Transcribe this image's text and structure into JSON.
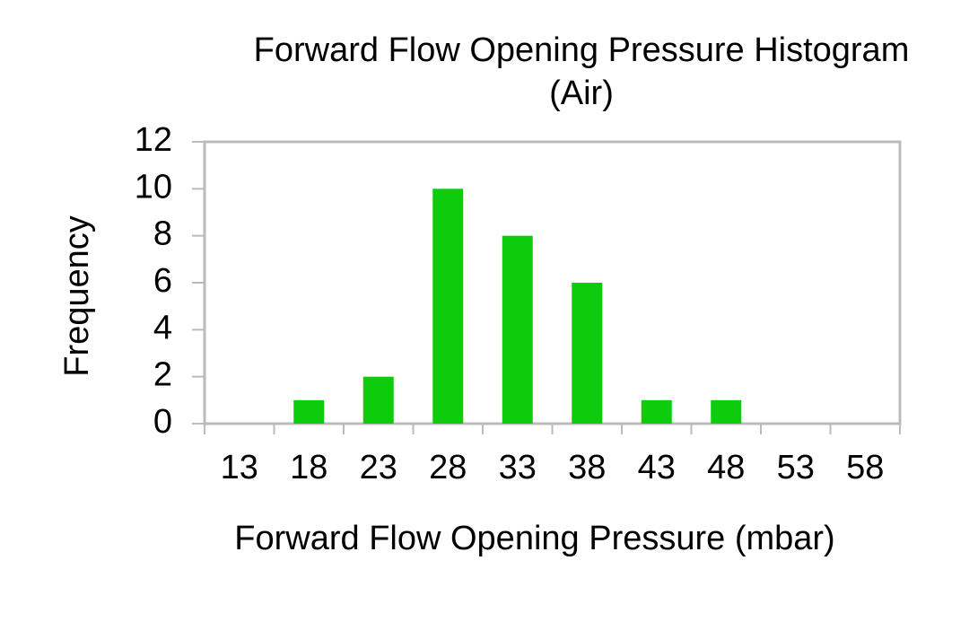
{
  "chart_data": {
    "type": "bar",
    "title": [
      "Forward Flow Opening Pressure Histogram",
      "(Air)"
    ],
    "x_label": "Forward Flow Opening Pressure (mbar)",
    "y_label": "Frequency",
    "categories": [
      "13",
      "18",
      "23",
      "28",
      "33",
      "38",
      "43",
      "48",
      "53",
      "58"
    ],
    "values": [
      0,
      1,
      2,
      10,
      8,
      6,
      1,
      1,
      0,
      0
    ],
    "color": "#0ccc0c",
    "ylim": [
      0,
      12
    ],
    "yticks": [
      0,
      2,
      4,
      6,
      8,
      10,
      12
    ],
    "grid": false
  }
}
